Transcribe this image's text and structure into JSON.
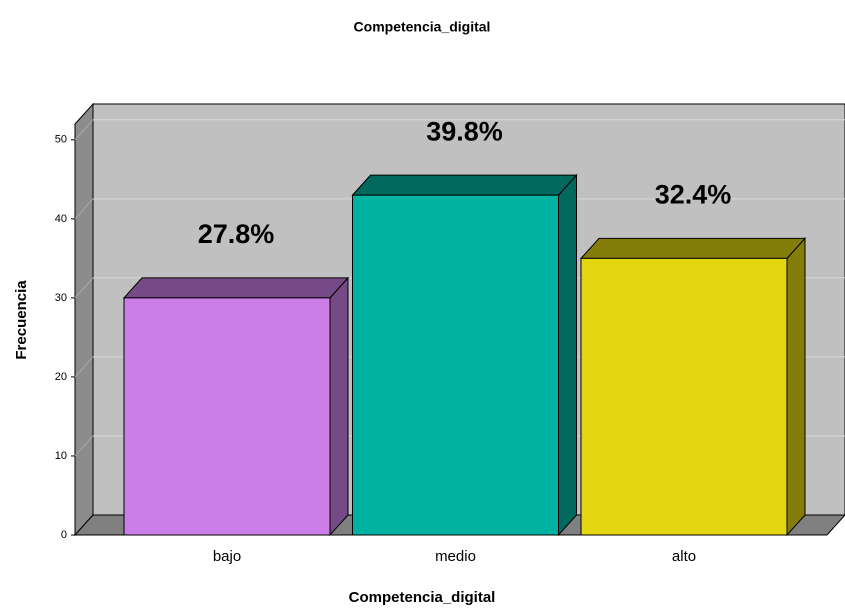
{
  "chart_data": {
    "type": "bar3d",
    "title": "Competencia_digital",
    "x_label": "Competencia_digital",
    "y_label": "Frecuencia",
    "categories": [
      "bajo",
      "medio",
      "alto"
    ],
    "values": [
      30,
      43,
      35
    ],
    "percent_values": [
      27.8,
      39.8,
      32.4
    ],
    "percent_labels": [
      "27.8%",
      "39.8%",
      "32.4%"
    ],
    "colors": [
      "#cc7ee8",
      "#00b3a0",
      "#e5d70f"
    ],
    "ylim": [
      0,
      52
    ],
    "yticks": [
      0,
      10,
      20,
      30,
      40,
      50
    ],
    "grid": true
  }
}
